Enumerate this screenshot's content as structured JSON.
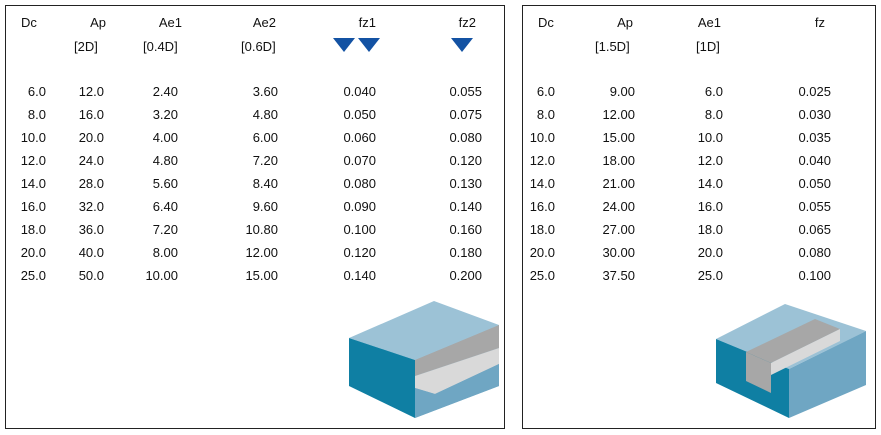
{
  "left_table": {
    "headers": [
      "Dc",
      "Ap",
      "Ae1",
      "Ae2",
      "fz1",
      "fz2"
    ],
    "subheaders": [
      "",
      "[2D]",
      "[0.4D]",
      "[0.6D]",
      "",
      ""
    ],
    "rows": [
      [
        "6.0",
        "12.0",
        "2.40",
        "3.60",
        "0.040",
        "0.055"
      ],
      [
        "8.0",
        "16.0",
        "3.20",
        "4.80",
        "0.050",
        "0.075"
      ],
      [
        "10.0",
        "20.0",
        "4.00",
        "6.00",
        "0.060",
        "0.080"
      ],
      [
        "12.0",
        "24.0",
        "4.80",
        "7.20",
        "0.070",
        "0.120"
      ],
      [
        "14.0",
        "28.0",
        "5.60",
        "8.40",
        "0.080",
        "0.130"
      ],
      [
        "16.0",
        "32.0",
        "6.40",
        "9.60",
        "0.090",
        "0.140"
      ],
      [
        "18.0",
        "36.0",
        "7.20",
        "10.80",
        "0.100",
        "0.160"
      ],
      [
        "20.0",
        "40.0",
        "8.00",
        "12.00",
        "0.120",
        "0.180"
      ],
      [
        "25.0",
        "50.0",
        "10.00",
        "15.00",
        "0.140",
        "0.200"
      ]
    ],
    "marker_icons": [
      "triangle-down-icon",
      "triangle-down-icon",
      "triangle-down-icon"
    ],
    "illustration": "step-milling-block-icon"
  },
  "right_table": {
    "headers": [
      "Dc",
      "Ap",
      "Ae1",
      "fz"
    ],
    "subheaders": [
      "",
      "[1.5D]",
      "[1D]",
      ""
    ],
    "rows": [
      [
        "6.0",
        "9.00",
        "6.0",
        "0.025"
      ],
      [
        "8.0",
        "12.00",
        "8.0",
        "0.030"
      ],
      [
        "10.0",
        "15.00",
        "10.0",
        "0.035"
      ],
      [
        "12.0",
        "18.00",
        "12.0",
        "0.040"
      ],
      [
        "14.0",
        "21.00",
        "14.0",
        "0.050"
      ],
      [
        "16.0",
        "24.00",
        "16.0",
        "0.055"
      ],
      [
        "18.0",
        "27.00",
        "18.0",
        "0.065"
      ],
      [
        "20.0",
        "30.00",
        "20.0",
        "0.080"
      ],
      [
        "25.0",
        "37.50",
        "25.0",
        "0.100"
      ]
    ],
    "illustration": "slot-milling-block-icon"
  },
  "colors": {
    "marker_blue": "#1352a3",
    "block_top": "#9cc2d6",
    "block_front": "#0f7fa3",
    "block_side": "#6fa6c3",
    "cut_grey": "#a7a7a7",
    "cut_light": "#d9d9d9"
  }
}
